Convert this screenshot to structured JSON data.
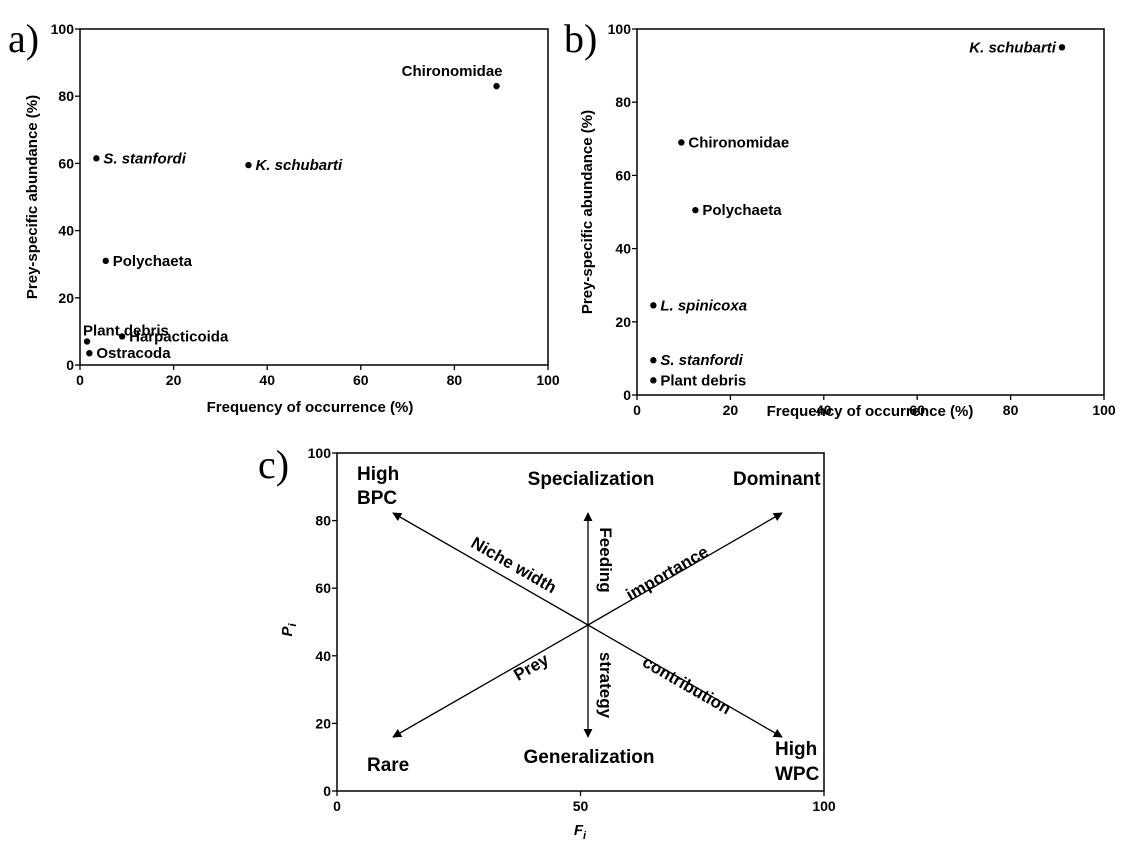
{
  "chart_data": [
    {
      "type": "scatter",
      "panel_label": "a)",
      "xlabel": "Frequency of occurrence (%)",
      "ylabel": "Prey-specific abundance (%)",
      "xlim": [
        0,
        100
      ],
      "ylim": [
        0,
        100
      ],
      "xticks": [
        0,
        20,
        40,
        60,
        80,
        100
      ],
      "yticks": [
        0,
        20,
        40,
        60,
        80,
        100
      ],
      "points": [
        {
          "label": "Chironomidae",
          "x": 89,
          "y": 83,
          "italic": false,
          "label_pos": "above-left"
        },
        {
          "label": "S. stanfordi",
          "x": 3.5,
          "y": 61.5,
          "italic": true,
          "label_pos": "right"
        },
        {
          "label": "K. schubarti",
          "x": 36,
          "y": 59.5,
          "italic": true,
          "label_pos": "right"
        },
        {
          "label": "Polychaeta",
          "x": 5.5,
          "y": 31,
          "italic": false,
          "label_pos": "right"
        },
        {
          "label": "Plant debris",
          "x": 1.5,
          "y": 7,
          "italic": false,
          "label_pos": "above"
        },
        {
          "label": "Harpacticoida",
          "x": 9,
          "y": 8.5,
          "italic": false,
          "label_pos": "right"
        },
        {
          "label": "Ostracoda",
          "x": 2,
          "y": 3.5,
          "italic": false,
          "label_pos": "right"
        }
      ]
    },
    {
      "type": "scatter",
      "panel_label": "b)",
      "xlabel": "Frequency of occurrence (%)",
      "ylabel": "Prey-specific abundance (%)",
      "xlim": [
        0,
        100
      ],
      "ylim": [
        0,
        100
      ],
      "xticks": [
        0,
        20,
        40,
        60,
        80,
        100
      ],
      "yticks": [
        0,
        20,
        40,
        60,
        80,
        100
      ],
      "points": [
        {
          "label": "K. schubarti",
          "x": 91,
          "y": 95,
          "italic": true,
          "label_pos": "left"
        },
        {
          "label": "Chironomidae",
          "x": 9.5,
          "y": 69,
          "italic": false,
          "label_pos": "right"
        },
        {
          "label": "Polychaeta",
          "x": 12.5,
          "y": 50.5,
          "italic": false,
          "label_pos": "right"
        },
        {
          "label": "L. spinicoxa",
          "x": 3.5,
          "y": 24.5,
          "italic": true,
          "label_pos": "right"
        },
        {
          "label": "S. stanfordi",
          "x": 3.5,
          "y": 9.5,
          "italic": true,
          "label_pos": "right"
        },
        {
          "label": "Plant debris",
          "x": 3.5,
          "y": 4,
          "italic": false,
          "label_pos": "right"
        }
      ]
    },
    {
      "type": "diagram",
      "panel_label": "c)",
      "xlabel": "F",
      "xlabel_sub": "i",
      "ylabel": "P",
      "ylabel_sub": "i",
      "xlim": [
        0,
        100
      ],
      "ylim": [
        0,
        100
      ],
      "xticks": [
        0,
        50,
        100
      ],
      "yticks": [
        0,
        20,
        40,
        60,
        80,
        100
      ],
      "corner_labels": {
        "top_left": [
          "High",
          "BPC"
        ],
        "top_center": "Specialization",
        "top_right": "Dominant",
        "bottom_left": "Rare",
        "bottom_center": "Generalization",
        "bottom_right": [
          "High",
          "WPC"
        ]
      },
      "arrow_labels": {
        "niche_width": "Niche width",
        "feeding": "Feeding",
        "strategy": "strategy",
        "importance": "importance",
        "prey": "Prey",
        "contribution": "contribution"
      }
    }
  ]
}
